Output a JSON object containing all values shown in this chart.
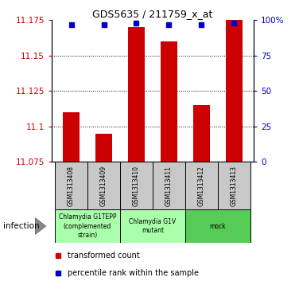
{
  "title": "GDS5635 / 211759_x_at",
  "samples": [
    "GSM1313408",
    "GSM1313409",
    "GSM1313410",
    "GSM1313411",
    "GSM1313412",
    "GSM1313413"
  ],
  "transformed_counts": [
    11.11,
    11.095,
    11.17,
    11.16,
    11.115,
    11.175
  ],
  "percentile_ranks": [
    97,
    97,
    98,
    97,
    97,
    98
  ],
  "ylim": [
    11.075,
    11.175
  ],
  "yticks": [
    11.075,
    11.1,
    11.125,
    11.15,
    11.175
  ],
  "ytick_labels": [
    "11.075",
    "11.1",
    "11.125",
    "11.15",
    "11.175"
  ],
  "y2lim": [
    0,
    100
  ],
  "y2ticks": [
    0,
    25,
    50,
    75,
    100
  ],
  "y2tick_labels": [
    "0",
    "25",
    "50",
    "75",
    "100%"
  ],
  "bar_color": "#cc0000",
  "dot_color": "#0000cc",
  "group_spans": [
    {
      "start": 0,
      "end": 1,
      "label": "Chlamydia G1TEPP\n(complemented\nstrain)",
      "color": "#aaffaa"
    },
    {
      "start": 2,
      "end": 3,
      "label": "Chlamydia G1V\nmutant",
      "color": "#aaffaa"
    },
    {
      "start": 4,
      "end": 5,
      "label": "mock",
      "color": "#55cc55"
    }
  ],
  "factor_label": "infection",
  "legend_bar_label": "transformed count",
  "legend_dot_label": "percentile rank within the sample",
  "bar_width": 0.5,
  "tick_color_left": "#cc0000",
  "tick_color_right": "#0000cc",
  "sample_box_color": "#c8c8c8"
}
